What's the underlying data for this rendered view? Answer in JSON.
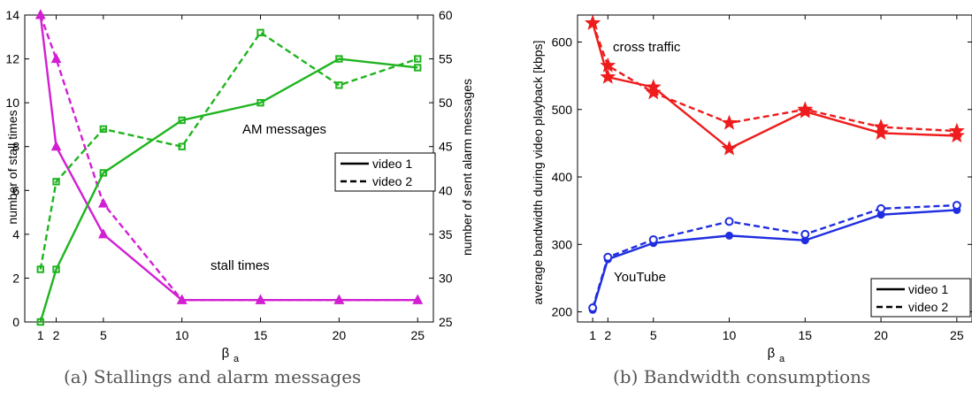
{
  "colors": {
    "green": "#1fb41f",
    "magenta": "#d21fd2",
    "red": "#ee1c1c",
    "blue": "#1f2ee0",
    "axis": "#000000"
  },
  "captions": {
    "a": "(a) Stallings and alarm messages",
    "b": "(b) Bandwidth consumptions"
  },
  "chart_data": [
    {
      "type": "line",
      "x": [
        1,
        2,
        5,
        10,
        15,
        20,
        25
      ],
      "xlabel": "β",
      "xlabel_sub": "a",
      "xticks": [
        "1",
        "2",
        "5",
        "10",
        "15",
        "20",
        "25"
      ],
      "xlim": [
        0,
        26
      ],
      "ylabel": "number of stall times",
      "ylim": [
        0,
        14
      ],
      "yticks": [
        "0",
        "2",
        "4",
        "6",
        "8",
        "10",
        "12",
        "14"
      ],
      "y2label": "number of sent alarm messages",
      "y2lim": [
        25,
        60
      ],
      "y2ticks": [
        "25",
        "30",
        "35",
        "40",
        "45",
        "50",
        "55",
        "60"
      ],
      "annotations": [
        "AM messages",
        "stall times"
      ],
      "legend": {
        "position": "right",
        "entries": [
          "video 1",
          "video 2"
        ]
      },
      "series": [
        {
          "name": "video 1",
          "group": "stall",
          "axis": "left",
          "style": "solid",
          "marker": "triangle",
          "color": "magenta",
          "values": [
            14,
            8,
            4,
            1,
            1,
            1,
            1
          ]
        },
        {
          "name": "video 2",
          "group": "stall",
          "axis": "left",
          "style": "dashed",
          "marker": "triangle",
          "color": "magenta",
          "values": [
            14,
            12,
            5.4,
            1,
            1,
            1,
            1
          ]
        },
        {
          "name": "video 1",
          "group": "am",
          "axis": "right",
          "style": "solid",
          "marker": "square",
          "color": "green",
          "values": [
            25,
            31,
            42,
            48,
            50,
            55,
            54
          ]
        },
        {
          "name": "video 2",
          "group": "am",
          "axis": "right",
          "style": "dashed",
          "marker": "square",
          "color": "green",
          "values": [
            31,
            41,
            47,
            45,
            58,
            52,
            55
          ]
        }
      ]
    },
    {
      "type": "line",
      "x": [
        1,
        2,
        5,
        10,
        15,
        20,
        25
      ],
      "xlabel": "β",
      "xlabel_sub": "a",
      "xticks": [
        "1",
        "2",
        "5",
        "10",
        "15",
        "20",
        "25"
      ],
      "xlim": [
        0,
        26
      ],
      "ylabel": "average bandwidth during video playback [kbps]",
      "ylim": [
        185,
        640
      ],
      "yticks": [
        "200",
        "300",
        "400",
        "500",
        "600"
      ],
      "annotations": [
        "cross traffic",
        "YouTube"
      ],
      "legend": {
        "position": "bottom-right",
        "entries": [
          "video 1",
          "video 2"
        ]
      },
      "series": [
        {
          "name": "video 1",
          "group": "cross",
          "style": "solid",
          "marker": "star",
          "color": "red",
          "values": [
            628,
            548,
            533,
            442,
            497,
            465,
            461
          ]
        },
        {
          "name": "video 2",
          "group": "cross",
          "style": "dashed",
          "marker": "star",
          "color": "red",
          "values": [
            628,
            565,
            525,
            480,
            500,
            474,
            468
          ]
        },
        {
          "name": "video 1",
          "group": "youtube",
          "style": "solid",
          "marker": "dot",
          "color": "blue",
          "values": [
            203,
            278,
            302,
            313,
            306,
            344,
            351
          ]
        },
        {
          "name": "video 2",
          "group": "youtube",
          "style": "dashed",
          "marker": "circle",
          "color": "blue",
          "values": [
            206,
            281,
            307,
            334,
            315,
            353,
            358
          ]
        }
      ]
    }
  ]
}
